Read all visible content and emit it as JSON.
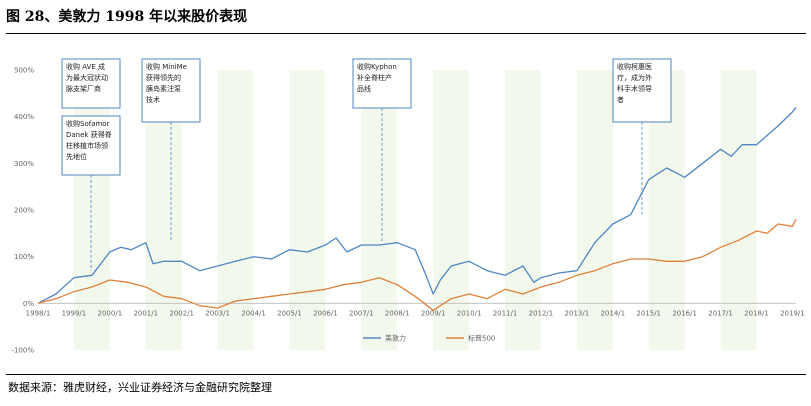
{
  "header": {
    "title": "图 28、美敦力 1998 年以来股价表现"
  },
  "footer": {
    "source": "数据来源：雅虎财经，兴业证券经济与金融研究院整理"
  },
  "chart_data": {
    "type": "line",
    "ylim": [
      -100,
      500
    ],
    "y_ticks": [
      "500%",
      "400%",
      "300%",
      "200%",
      "100%",
      "0%",
      "-100%"
    ],
    "x_ticks": [
      "1998/1",
      "1999/1",
      "2000/1",
      "2001/1",
      "2002/1",
      "2003/1",
      "2004/1",
      "2005/1",
      "2006/1",
      "2007/1",
      "2008/1",
      "2009/1",
      "2010/1",
      "2011/1",
      "2012/1",
      "2013/1",
      "2014/1",
      "2015/1",
      "2016/1",
      "2017/1",
      "2018/1",
      "2019/1"
    ],
    "legend_placement": "bottom",
    "grid": false,
    "series": [
      {
        "name": "美敦力",
        "color": "#4f87c3",
        "x": [
          1998.0,
          1998.5,
          1999.0,
          1999.5,
          2000.0,
          2000.3,
          2000.6,
          2001.0,
          2001.2,
          2001.5,
          2002.0,
          2002.5,
          2003.0,
          2003.5,
          2004.0,
          2004.5,
          2005.0,
          2005.5,
          2006.0,
          2006.3,
          2006.6,
          2007.0,
          2007.5,
          2008.0,
          2008.5,
          2008.8,
          2009.0,
          2009.2,
          2009.5,
          2010.0,
          2010.5,
          2011.0,
          2011.5,
          2011.8,
          2012.0,
          2012.5,
          2013.0,
          2013.5,
          2014.0,
          2014.5,
          2015.0,
          2015.5,
          2016.0,
          2016.5,
          2017.0,
          2017.3,
          2017.6,
          2018.0,
          2018.3,
          2018.6,
          2019.0,
          2019.1
        ],
        "y": [
          0,
          20,
          55,
          60,
          110,
          120,
          115,
          130,
          85,
          90,
          90,
          70,
          80,
          90,
          100,
          95,
          115,
          110,
          125,
          140,
          110,
          125,
          125,
          130,
          115,
          60,
          20,
          50,
          80,
          90,
          70,
          60,
          80,
          45,
          55,
          65,
          70,
          130,
          170,
          190,
          265,
          290,
          270,
          300,
          330,
          315,
          340,
          340,
          360,
          380,
          410,
          420
        ]
      },
      {
        "name": "标普500",
        "color": "#e0813a",
        "x": [
          1998.0,
          1998.5,
          1999.0,
          1999.5,
          2000.0,
          2000.5,
          2001.0,
          2001.5,
          2002.0,
          2002.5,
          2003.0,
          2003.5,
          2004.0,
          2004.5,
          2005.0,
          2005.5,
          2006.0,
          2006.5,
          2007.0,
          2007.5,
          2008.0,
          2008.5,
          2009.0,
          2009.2,
          2009.5,
          2010.0,
          2010.5,
          2011.0,
          2011.5,
          2012.0,
          2012.5,
          2013.0,
          2013.5,
          2014.0,
          2014.5,
          2015.0,
          2015.5,
          2016.0,
          2016.5,
          2017.0,
          2017.5,
          2018.0,
          2018.3,
          2018.6,
          2019.0,
          2019.1
        ],
        "y": [
          0,
          10,
          25,
          35,
          50,
          45,
          35,
          15,
          10,
          -5,
          -10,
          5,
          10,
          15,
          20,
          25,
          30,
          40,
          45,
          55,
          40,
          15,
          -15,
          -5,
          10,
          20,
          10,
          30,
          20,
          35,
          45,
          60,
          70,
          85,
          95,
          95,
          90,
          90,
          100,
          120,
          135,
          155,
          150,
          170,
          165,
          180
        ]
      }
    ],
    "annotations": [
      {
        "lines": [
          "收购 AVE 成",
          "为最大冠状动",
          "脉支架厂商"
        ],
        "x": 1999.1
      },
      {
        "lines": [
          "收购Sofamor",
          "Danek 获得脊",
          "柱移植市场领",
          "先地位"
        ],
        "x": 1999.1
      },
      {
        "lines": [
          "收购 MiniMe",
          "获得领先的",
          "胰岛素注泵",
          "技术"
        ],
        "x": 2001.4
      },
      {
        "lines": [
          "收购Kyphon",
          "补全脊柱产",
          "品线"
        ],
        "x": 2007.6
      },
      {
        "lines": [
          "收购柯惠医",
          "疗，成为外",
          "科手术领导",
          "者"
        ],
        "x": 2015.0
      }
    ]
  }
}
